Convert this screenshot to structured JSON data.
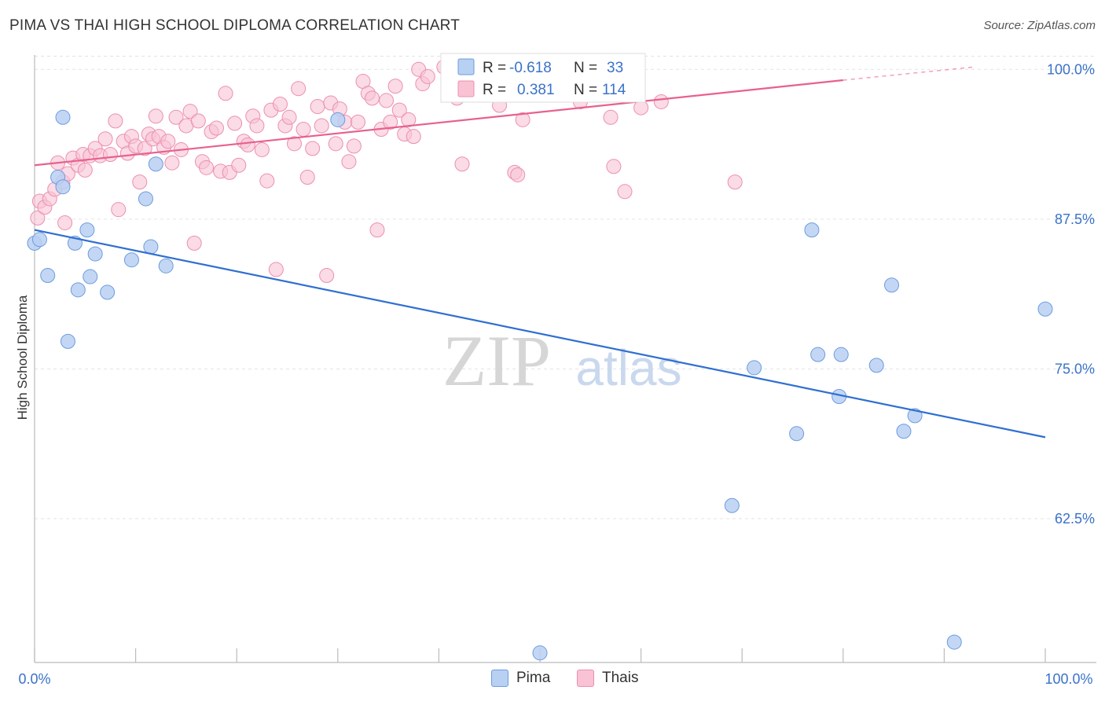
{
  "title": "PIMA VS THAI HIGH SCHOOL DIPLOMA CORRELATION CHART",
  "source": "Source: ZipAtlas.com",
  "watermark": {
    "zip": "ZIP",
    "atlas": "atlas"
  },
  "colors": {
    "pima_fill": "#b8d0f2",
    "pima_stroke": "#6d9be0",
    "pima_line": "#2f6fd1",
    "thai_fill": "#f9c3d4",
    "thai_stroke": "#ec8fb0",
    "thai_line": "#e8608e",
    "value_text": "#3a72c8",
    "grid": "#e3e3e3"
  },
  "legend_box": {
    "rows": [
      {
        "r_label": "R =",
        "r_value": "-0.618",
        "n_label": "N =",
        "n_value": "33",
        "series": "pima"
      },
      {
        "r_label": "R =",
        "r_value": "0.381",
        "n_label": "N =",
        "n_value": "114",
        "series": "thai"
      }
    ]
  },
  "legend_bottom": [
    {
      "label": "Pima",
      "series": "pima"
    },
    {
      "label": "Thais",
      "series": "thai"
    }
  ],
  "chart_data": {
    "type": "scatter",
    "title": "PIMA VS THAI HIGH SCHOOL DIPLOMA CORRELATION CHART",
    "xlabel": "",
    "ylabel": "High School Diploma",
    "x_tick_labels": [
      "0.0%",
      "100.0%"
    ],
    "y_tick_labels": [
      "100.0%",
      "87.5%",
      "75.0%",
      "62.5%"
    ],
    "y_ticks": [
      100.0,
      87.5,
      75.0,
      62.5
    ],
    "xlim": [
      0,
      100
    ],
    "ylim": [
      50.5,
      101.2
    ],
    "grid": true,
    "series": [
      {
        "name": "Pima",
        "color": "#b8d0f2",
        "trend": {
          "x0": 0,
          "y0": 86.6,
          "x1": 100,
          "y1": 69.3
        },
        "points": [
          [
            0,
            85.5
          ],
          [
            0.5,
            85.8
          ],
          [
            1.3,
            82.8
          ],
          [
            2.3,
            91.0
          ],
          [
            2.8,
            90.2
          ],
          [
            2.8,
            96.0
          ],
          [
            3.3,
            77.3
          ],
          [
            4,
            85.5
          ],
          [
            4.3,
            81.6
          ],
          [
            5.2,
            86.6
          ],
          [
            5.5,
            82.7
          ],
          [
            6,
            84.6
          ],
          [
            7.2,
            81.4
          ],
          [
            9.6,
            84.1
          ],
          [
            11,
            89.2
          ],
          [
            11.5,
            85.2
          ],
          [
            12,
            92.1
          ],
          [
            13,
            83.6
          ],
          [
            30,
            95.8
          ],
          [
            50,
            51.3
          ],
          [
            69,
            63.6
          ],
          [
            71.2,
            75.1
          ],
          [
            75.4,
            69.6
          ],
          [
            76.9,
            86.6
          ],
          [
            77.5,
            76.2
          ],
          [
            79.6,
            72.7
          ],
          [
            79.8,
            76.2
          ],
          [
            83.3,
            75.3
          ],
          [
            84.8,
            82.0
          ],
          [
            86,
            69.8
          ],
          [
            87.1,
            71.1
          ],
          [
            91,
            52.2
          ],
          [
            100,
            80.0
          ]
        ]
      },
      {
        "name": "Thais",
        "color": "#f9c3d4",
        "trend": {
          "x0": 0,
          "y0": 92.0,
          "x1": 80,
          "y1": 99.1,
          "dash_to_x": 93,
          "dash_to_y": 100.2
        },
        "points": [
          [
            0.3,
            87.6
          ],
          [
            0.5,
            89.0
          ],
          [
            1,
            88.5
          ],
          [
            1.5,
            89.2
          ],
          [
            2,
            90.0
          ],
          [
            2.3,
            92.2
          ],
          [
            2.8,
            90.6
          ],
          [
            3,
            87.2
          ],
          [
            3.3,
            91.3
          ],
          [
            3.8,
            92.6
          ],
          [
            4.3,
            92.0
          ],
          [
            4.8,
            92.9
          ],
          [
            5,
            91.6
          ],
          [
            5.5,
            92.8
          ],
          [
            6,
            93.4
          ],
          [
            6.5,
            92.8
          ],
          [
            7,
            94.2
          ],
          [
            7.5,
            92.9
          ],
          [
            8,
            95.7
          ],
          [
            8.3,
            88.3
          ],
          [
            8.8,
            94.0
          ],
          [
            9.2,
            93.0
          ],
          [
            9.6,
            94.4
          ],
          [
            10,
            93.6
          ],
          [
            10.4,
            90.6
          ],
          [
            10.9,
            93.4
          ],
          [
            11.3,
            94.6
          ],
          [
            11.7,
            94.2
          ],
          [
            12,
            96.1
          ],
          [
            12.3,
            94.4
          ],
          [
            12.8,
            93.5
          ],
          [
            13.2,
            94.0
          ],
          [
            13.6,
            92.2
          ],
          [
            14,
            96.0
          ],
          [
            14.5,
            93.3
          ],
          [
            15,
            95.3
          ],
          [
            15.4,
            96.5
          ],
          [
            15.8,
            85.5
          ],
          [
            16.2,
            95.7
          ],
          [
            16.6,
            92.3
          ],
          [
            17,
            91.8
          ],
          [
            17.5,
            94.8
          ],
          [
            18,
            95.1
          ],
          [
            18.4,
            91.5
          ],
          [
            18.9,
            98.0
          ],
          [
            19.3,
            91.4
          ],
          [
            19.8,
            95.5
          ],
          [
            20.2,
            92.0
          ],
          [
            20.7,
            94.0
          ],
          [
            21.1,
            93.7
          ],
          [
            21.6,
            96.1
          ],
          [
            22,
            95.3
          ],
          [
            22.5,
            93.3
          ],
          [
            23,
            90.7
          ],
          [
            23.4,
            96.6
          ],
          [
            23.9,
            83.3
          ],
          [
            24.3,
            97.1
          ],
          [
            24.8,
            95.3
          ],
          [
            25.2,
            96.0
          ],
          [
            25.7,
            93.8
          ],
          [
            26.1,
            98.4
          ],
          [
            26.6,
            95.0
          ],
          [
            27,
            91.0
          ],
          [
            27.5,
            93.4
          ],
          [
            28,
            96.9
          ],
          [
            28.4,
            95.3
          ],
          [
            28.9,
            82.8
          ],
          [
            29.3,
            97.2
          ],
          [
            29.8,
            93.8
          ],
          [
            30.2,
            96.7
          ],
          [
            30.7,
            95.6
          ],
          [
            31.1,
            92.3
          ],
          [
            31.6,
            93.6
          ],
          [
            32,
            95.6
          ],
          [
            32.5,
            99.0
          ],
          [
            33,
            98.0
          ],
          [
            33.4,
            97.6
          ],
          [
            33.9,
            86.6
          ],
          [
            34.3,
            95.0
          ],
          [
            34.8,
            97.4
          ],
          [
            35.2,
            95.6
          ],
          [
            35.7,
            98.6
          ],
          [
            36.1,
            96.6
          ],
          [
            36.6,
            94.6
          ],
          [
            37,
            95.8
          ],
          [
            37.5,
            94.4
          ],
          [
            38,
            100.0
          ],
          [
            38.4,
            98.8
          ],
          [
            38.9,
            99.4
          ],
          [
            40.5,
            100.2
          ],
          [
            41,
            99.3
          ],
          [
            41.8,
            97.6
          ],
          [
            42.3,
            92.1
          ],
          [
            44,
            98.8
          ],
          [
            45,
            98.2
          ],
          [
            45.5,
            100.1
          ],
          [
            46,
            97.0
          ],
          [
            47,
            99.4
          ],
          [
            47.5,
            91.4
          ],
          [
            47.8,
            91.2
          ],
          [
            48.3,
            95.8
          ],
          [
            49.2,
            97.9
          ],
          [
            49.8,
            99.2
          ],
          [
            51,
            98.3
          ],
          [
            51.5,
            100.3
          ],
          [
            52,
            99.1
          ],
          [
            53,
            98.6
          ],
          [
            54,
            97.3
          ],
          [
            55,
            98.9
          ],
          [
            57,
            96.0
          ],
          [
            58.4,
            89.8
          ],
          [
            69.3,
            90.6
          ],
          [
            60,
            96.8
          ],
          [
            62,
            97.3
          ],
          [
            57.3,
            91.9
          ]
        ]
      }
    ]
  }
}
